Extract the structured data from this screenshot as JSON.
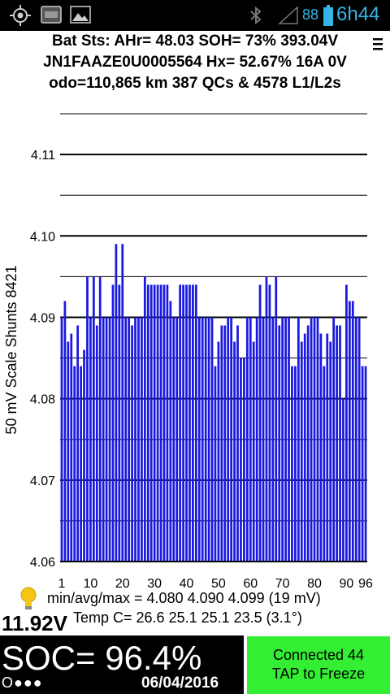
{
  "status_bar": {
    "battery_percent": "88",
    "clock": "6h44",
    "icons": [
      "gps-icon",
      "photo-icon",
      "image-icon",
      "bluetooth-icon",
      "signal-icon",
      "battery-icon"
    ]
  },
  "header": {
    "line1": "Bat Sts: AHr= 48.03 SOH= 73% 393.04V",
    "line2": "JN1FAAZE0U0005564   Hx= 52.67% 16A 0V",
    "line3": "odo=110,865 km 387 QCs & 4578 L1/L2s"
  },
  "chart_data": {
    "type": "bar",
    "ylabel": "50 mV Scale   Shunts 8421",
    "ylim": [
      4.06,
      4.116
    ],
    "yticks": [
      "4.06",
      "4.07",
      "4.08",
      "4.09",
      "4.10",
      "4.11"
    ],
    "xticks": [
      "1",
      "10",
      "20",
      "30",
      "40",
      "50",
      "60",
      "70",
      "80",
      "90",
      "96"
    ],
    "grid": true,
    "color": "#1a1adf",
    "x": [
      1,
      2,
      3,
      4,
      5,
      6,
      7,
      8,
      9,
      10,
      11,
      12,
      13,
      14,
      15,
      16,
      17,
      18,
      19,
      20,
      21,
      22,
      23,
      24,
      25,
      26,
      27,
      28,
      29,
      30,
      31,
      32,
      33,
      34,
      35,
      36,
      37,
      38,
      39,
      40,
      41,
      42,
      43,
      44,
      45,
      46,
      47,
      48,
      49,
      50,
      51,
      52,
      53,
      54,
      55,
      56,
      57,
      58,
      59,
      60,
      61,
      62,
      63,
      64,
      65,
      66,
      67,
      68,
      69,
      70,
      71,
      72,
      73,
      74,
      75,
      76,
      77,
      78,
      79,
      80,
      81,
      82,
      83,
      84,
      85,
      86,
      87,
      88,
      89,
      90,
      91,
      92,
      93,
      94,
      95,
      96
    ],
    "values": [
      4.09,
      4.092,
      4.087,
      4.088,
      4.084,
      4.089,
      4.084,
      4.086,
      4.095,
      4.09,
      4.095,
      4.089,
      4.095,
      4.09,
      4.09,
      4.09,
      4.094,
      4.099,
      4.094,
      4.099,
      4.09,
      4.09,
      4.089,
      4.09,
      4.09,
      4.09,
      4.095,
      4.094,
      4.094,
      4.094,
      4.094,
      4.094,
      4.094,
      4.094,
      4.092,
      4.09,
      4.09,
      4.094,
      4.094,
      4.094,
      4.094,
      4.094,
      4.094,
      4.09,
      4.09,
      4.09,
      4.09,
      4.09,
      4.084,
      4.087,
      4.089,
      4.089,
      4.09,
      4.09,
      4.087,
      4.089,
      4.085,
      4.085,
      4.09,
      4.09,
      4.087,
      4.09,
      4.094,
      4.09,
      4.095,
      4.094,
      4.09,
      4.095,
      4.089,
      4.09,
      4.09,
      4.09,
      4.084,
      4.084,
      4.09,
      4.087,
      4.088,
      4.089,
      4.09,
      4.09,
      4.09,
      4.088,
      4.084,
      4.088,
      4.087,
      4.09,
      4.089,
      4.089,
      4.08,
      4.094,
      4.092,
      4.092,
      4.09,
      4.09,
      4.084,
      4.084
    ]
  },
  "stats": {
    "minmax": "min/avg/max = 4.080 4.090 4.099  (19 mV)",
    "temp": "Temp C= 26.6  25.1  25.1  23.5  (3.1°)",
    "voltage": "11.92V"
  },
  "footer": {
    "soc": "SOC= 96.4%",
    "dots": "O●●●",
    "date": "06/04/2016",
    "connect_line1": "Connected 44",
    "connect_line2": "TAP to Freeze",
    "colors": {
      "soc_bg": "#000000",
      "connect_bg": "#33ee33",
      "accent": "#33b5e5"
    }
  }
}
